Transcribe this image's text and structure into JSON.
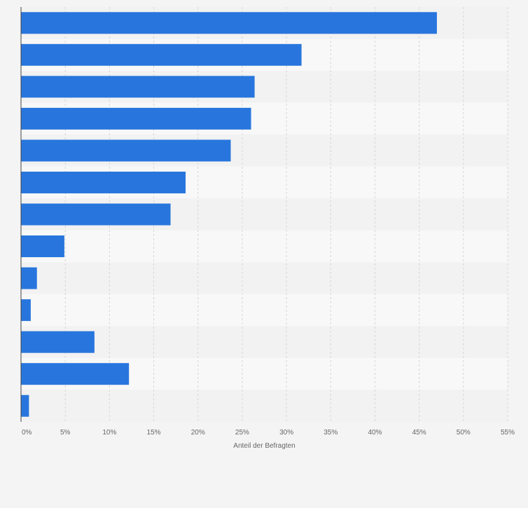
{
  "chart_data": {
    "type": "bar",
    "orientation": "horizontal",
    "title": "",
    "xlabel": "Anteil der Befragten",
    "ylabel": "",
    "xlim": [
      0,
      55
    ],
    "xticks": [
      "0%",
      "5%",
      "10%",
      "15%",
      "20%",
      "25%",
      "30%",
      "35%",
      "40%",
      "45%",
      "50%",
      "55%"
    ],
    "values": [
      47,
      31.7,
      26.4,
      26,
      23.7,
      18.6,
      16.9,
      4.9,
      1.8,
      1.1,
      8.3,
      12.2,
      0.9
    ],
    "grid": true,
    "colors": {
      "bar": "#2876dd",
      "band_dark": "#f2f2f2",
      "band_light": "#f8f8f8",
      "background": "#f4f4f4",
      "grid": "#d6d6d6",
      "axis": "#444444",
      "tick_text": "#666666"
    }
  }
}
